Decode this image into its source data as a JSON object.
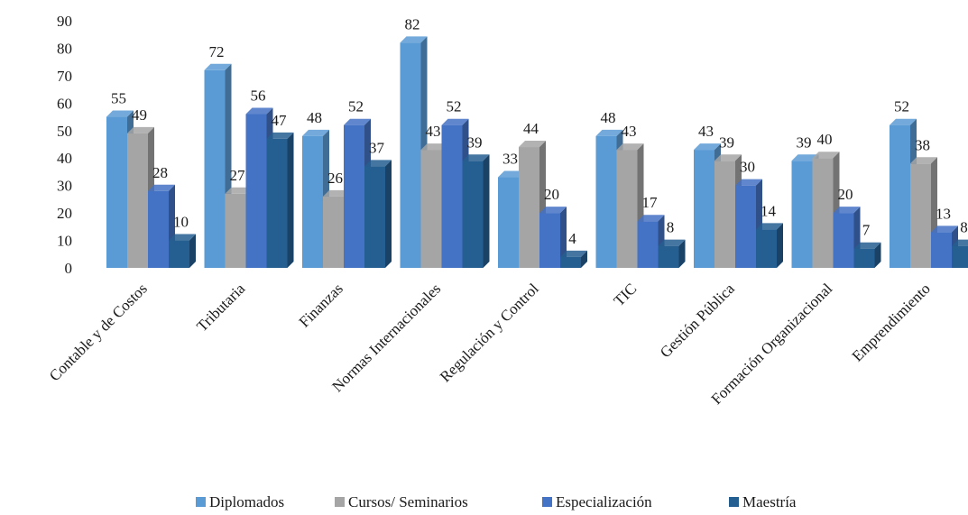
{
  "chart_data": {
    "type": "bar",
    "categories": [
      "Contable y de Costos",
      "Tributaria",
      "Finanzas",
      "Normas Internacionales",
      "Regulación y Control",
      "TIC",
      "Gestión Pública",
      "Formación Organizacional",
      "Emprendimiento"
    ],
    "series": [
      {
        "name": "Diplomados",
        "color": "#5B9BD5",
        "values": [
          55,
          72,
          48,
          82,
          33,
          48,
          43,
          39,
          52
        ]
      },
      {
        "name": "Cursos/ Seminarios",
        "color": "#A5A5A5",
        "values": [
          49,
          27,
          26,
          43,
          44,
          43,
          39,
          40,
          38
        ]
      },
      {
        "name": "Especialización",
        "color": "#4472C4",
        "values": [
          28,
          56,
          52,
          52,
          20,
          17,
          30,
          20,
          13
        ]
      },
      {
        "name": "Maestría",
        "color": "#255E91",
        "values": [
          10,
          47,
          37,
          39,
          4,
          8,
          14,
          7,
          8
        ]
      }
    ],
    "ylim": [
      0,
      90
    ],
    "yticks": [
      0,
      10,
      20,
      30,
      40,
      50,
      60,
      70,
      80,
      90
    ],
    "style": "3d-clustered-column",
    "grid": false,
    "legend_position": "bottom"
  }
}
